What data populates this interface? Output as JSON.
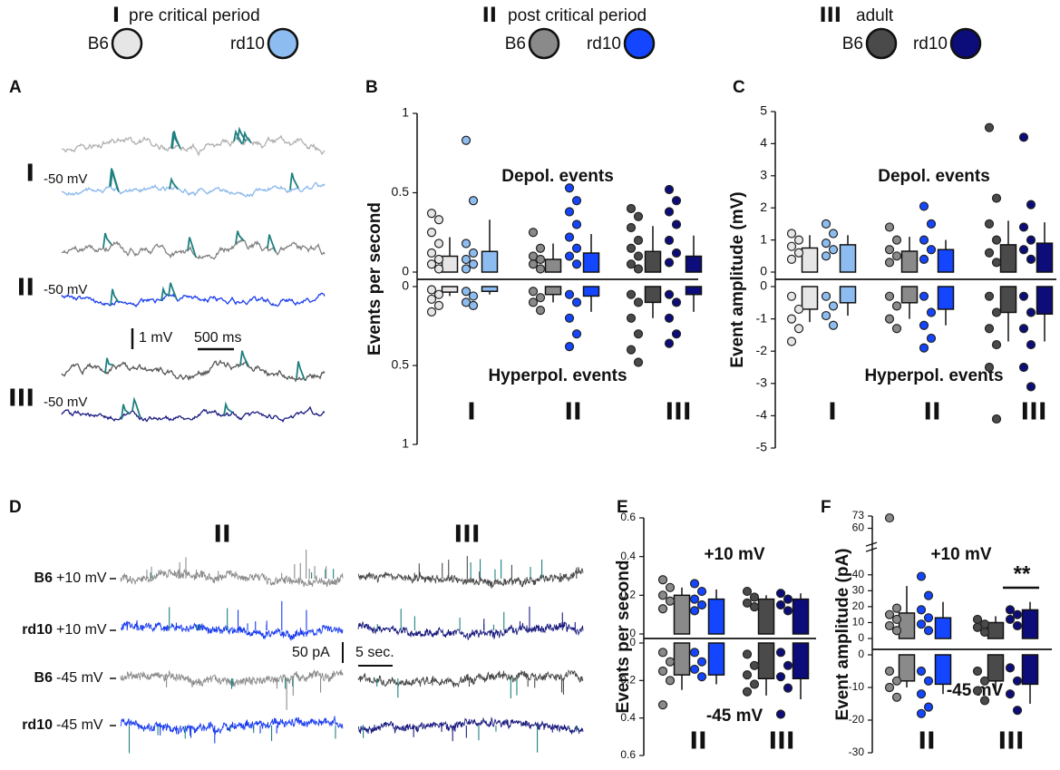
{
  "legend": [
    {
      "numeral": "I",
      "period": "pre critical period",
      "strains": [
        {
          "name": "B6",
          "color": "#e6e6e6"
        },
        {
          "name": "rd10",
          "color": "#8dbdf0"
        }
      ]
    },
    {
      "numeral": "II",
      "period": "post critical period",
      "strains": [
        {
          "name": "B6",
          "color": "#8a8a8a"
        },
        {
          "name": "rd10",
          "color": "#1446ff"
        }
      ]
    },
    {
      "numeral": "III",
      "period": "adult",
      "strains": [
        {
          "name": "B6",
          "color": "#4a4a4a"
        },
        {
          "name": "rd10",
          "color": "#0c0c7a"
        }
      ]
    }
  ],
  "spike_color": "#1f8080",
  "panel_a": {
    "label": "A",
    "rows": [
      {
        "numeral": "I",
        "voltage": "-50 mV",
        "colors": [
          "#b0b0b0",
          "#8ab7ec"
        ]
      },
      {
        "numeral": "II",
        "voltage": "-50 mV",
        "colors": [
          "#808080",
          "#1a3cf0"
        ]
      },
      {
        "numeral": "III",
        "voltage": "-50 mV",
        "colors": [
          "#555555",
          "#1a1a80"
        ]
      }
    ],
    "scale_v": "1 mV",
    "scale_t": "500 ms"
  },
  "panel_d": {
    "label": "D",
    "columns": [
      {
        "numeral": "II",
        "colors": [
          "#8c8c8c",
          "#1a3cf0",
          "#8c8c8c",
          "#1a3cf0"
        ]
      },
      {
        "numeral": "III",
        "colors": [
          "#4a4a4a",
          "#1c1c80",
          "#4a4a4a",
          "#1c1c80"
        ]
      }
    ],
    "rows": [
      {
        "strain": "B6",
        "voltage": "+10 mV"
      },
      {
        "strain": "rd10",
        "voltage": "+10 mV"
      },
      {
        "strain": "B6",
        "voltage": "-45 mV"
      },
      {
        "strain": "rd10",
        "voltage": "-45 mV"
      }
    ],
    "scale_i": "50 pA",
    "scale_t": "5 sec."
  },
  "chart_data": [
    {
      "type": "mirrored_bar",
      "label": "B",
      "ylabel": "Events per second",
      "upper_label": "Depol. events",
      "lower_label": "Hyperpol. events",
      "categories": [
        "I",
        "II",
        "III"
      ],
      "ylim": [
        0,
        1
      ],
      "yticks": [
        0,
        0.5,
        1
      ],
      "lower_ylim": [
        0,
        1
      ],
      "lower_yticks": [
        0,
        0.5,
        1
      ],
      "series": [
        {
          "colors": [
            "#e6e6e6",
            "#8a8a8a",
            "#4a4a4a"
          ],
          "values": [
            0.1,
            0.08,
            0.13
          ],
          "errors": [
            0.12,
            0.1,
            0.16
          ],
          "lower_values": [
            0.035,
            0.05,
            0.1
          ],
          "lower_errors": [
            0.025,
            0.05,
            0.1
          ],
          "points": [
            [
              0.37,
              0.33,
              0.25,
              0.18,
              0.12,
              0.08,
              0.05,
              0.02
            ],
            [
              0.25,
              0.15,
              0.1,
              0.08,
              0.05,
              0.02
            ],
            [
              0.4,
              0.35,
              0.28,
              0.2,
              0.15,
              0.1,
              0.05,
              0.02
            ]
          ],
          "lower_points": [
            [
              0.02,
              0.05,
              0.08,
              0.12,
              0.16
            ],
            [
              0.03,
              0.07,
              0.1,
              0.15
            ],
            [
              0.05,
              0.1,
              0.2,
              0.3,
              0.4,
              0.48
            ]
          ]
        },
        {
          "colors": [
            "#8dbdf0",
            "#1446ff",
            "#0c0c7a"
          ],
          "values": [
            0.13,
            0.12,
            0.1
          ],
          "errors": [
            0.2,
            0.12,
            0.13
          ],
          "lower_values": [
            0.03,
            0.06,
            0.05
          ],
          "lower_errors": [
            0.02,
            0.1,
            0.11
          ],
          "points": [
            [
              0.83,
              0.45,
              0.18,
              0.12,
              0.08,
              0.05,
              0.02
            ],
            [
              0.53,
              0.45,
              0.38,
              0.3,
              0.22,
              0.15,
              0.1,
              0.05
            ],
            [
              0.52,
              0.45,
              0.38,
              0.3,
              0.2,
              0.12,
              0.06
            ]
          ],
          "lower_points": [
            [
              0.03,
              0.06,
              0.1,
              0.12
            ],
            [
              0.05,
              0.1,
              0.2,
              0.3,
              0.38
            ],
            [
              0.05,
              0.1,
              0.2,
              0.3,
              0.36
            ]
          ]
        }
      ]
    },
    {
      "type": "mirrored_bar",
      "label": "C",
      "ylabel": "Event amplitude (mV)",
      "upper_label": "Depol. events",
      "lower_label": "Hyperpol. events",
      "categories": [
        "I",
        "II",
        "III"
      ],
      "ylim": [
        0,
        5
      ],
      "yticks": [
        0,
        1,
        2,
        3,
        4,
        5
      ],
      "lower_ylim": [
        0,
        -5
      ],
      "lower_yticks": [
        0,
        -1,
        -2,
        -3,
        -4,
        -5
      ],
      "series": [
        {
          "colors": [
            "#e6e6e6",
            "#8a8a8a",
            "#4a4a4a"
          ],
          "values": [
            0.75,
            0.65,
            0.85
          ],
          "errors": [
            0.4,
            0.45,
            0.75
          ],
          "lower_values": [
            -0.7,
            -0.5,
            -0.8
          ],
          "lower_errors": [
            -0.4,
            -0.5,
            -0.9
          ],
          "points": [
            [
              1.2,
              1.0,
              0.8,
              0.6,
              0.4
            ],
            [
              1.4,
              1.0,
              0.7,
              0.5,
              0.3
            ],
            [
              4.5,
              2.3,
              1.5,
              1.0,
              0.6,
              0.3
            ]
          ],
          "lower_points": [
            [
              -0.3,
              -0.7,
              -1.0,
              -1.3,
              -1.7
            ],
            [
              -0.3,
              -0.6,
              -1.0,
              -1.3
            ],
            [
              -0.3,
              -0.8,
              -1.3,
              -1.8,
              -2.5,
              -4.1
            ]
          ]
        },
        {
          "colors": [
            "#8dbdf0",
            "#1446ff",
            "#0c0c7a"
          ],
          "values": [
            0.85,
            0.7,
            0.9
          ],
          "errors": [
            0.3,
            0.3,
            0.65
          ],
          "lower_values": [
            -0.5,
            -0.7,
            -0.85
          ],
          "lower_errors": [
            -0.4,
            -0.5,
            -0.85
          ],
          "points": [
            [
              1.5,
              1.2,
              0.9,
              0.7,
              0.5
            ],
            [
              2.05,
              1.5,
              1.0,
              0.7,
              0.4
            ],
            [
              4.2,
              2.1,
              1.4,
              1.0,
              0.7,
              0.4
            ]
          ],
          "lower_points": [
            [
              -0.3,
              -0.6,
              -0.9,
              -1.2
            ],
            [
              -0.3,
              -0.8,
              -1.2,
              -1.6,
              -1.9
            ],
            [
              -0.3,
              -0.8,
              -1.3,
              -1.8,
              -2.5,
              -3.1
            ]
          ]
        }
      ]
    },
    {
      "type": "mirrored_bar",
      "label": "E",
      "ylabel": "Events per second",
      "upper_label": "+10 mV",
      "lower_label": "-45 mV",
      "categories": [
        "II",
        "III"
      ],
      "ylim": [
        0,
        0.6
      ],
      "yticks": [
        0,
        0.2,
        0.4,
        0.6
      ],
      "lower_ylim": [
        0,
        0.6
      ],
      "lower_yticks": [
        0,
        0.2,
        0.4,
        0.6
      ],
      "series": [
        {
          "colors": [
            "#8a8a8a",
            "#4a4a4a"
          ],
          "values": [
            0.2,
            0.18
          ],
          "errors": [
            0.04,
            0.02
          ],
          "lower_values": [
            0.17,
            0.19
          ],
          "lower_errors": [
            0.08,
            0.09
          ],
          "points": [
            [
              0.28,
              0.24,
              0.2,
              0.17,
              0.13
            ],
            [
              0.22,
              0.19,
              0.16,
              0.14
            ]
          ],
          "lower_points": [
            [
              0.05,
              0.1,
              0.15,
              0.2,
              0.33
            ],
            [
              0.06,
              0.12,
              0.17,
              0.22,
              0.26
            ]
          ]
        },
        {
          "colors": [
            "#1446ff",
            "#0c0c7a"
          ],
          "values": [
            0.18,
            0.18
          ],
          "errors": [
            0.05,
            0.03
          ],
          "lower_values": [
            0.17,
            0.19
          ],
          "lower_errors": [
            0.05,
            0.11
          ],
          "points": [
            [
              0.26,
              0.22,
              0.18,
              0.15,
              0.12
            ],
            [
              0.21,
              0.18,
              0.15,
              0.12
            ]
          ],
          "lower_points": [
            [
              0.05,
              0.1,
              0.14,
              0.18
            ],
            [
              0.05,
              0.12,
              0.18,
              0.24,
              0.38
            ]
          ]
        }
      ]
    },
    {
      "type": "mirrored_bar",
      "label": "F",
      "ylabel": "Event amplitude (pA)",
      "upper_label": "+10 mV",
      "lower_label": "-45 mV",
      "significance": "**",
      "categories": [
        "II",
        "III"
      ],
      "ylim": [
        0,
        73
      ],
      "yticks": [
        0,
        10,
        20,
        30,
        40,
        60,
        73
      ],
      "axis_break": true,
      "lower_ylim": [
        0,
        -30
      ],
      "lower_yticks": [
        0,
        -10,
        -20,
        -30
      ],
      "series": [
        {
          "colors": [
            "#8a8a8a",
            "#4a4a4a"
          ],
          "values": [
            16,
            10
          ],
          "errors": [
            17,
            4
          ],
          "lower_values": [
            -8,
            -8
          ],
          "lower_errors": [
            -2,
            -4
          ],
          "points": [
            [
              71,
              19,
              15,
              12,
              8,
              5
            ],
            [
              12,
              9,
              7,
              4
            ]
          ],
          "lower_points": [
            [
              -5,
              -8,
              -10,
              -13
            ],
            [
              -5,
              -8,
              -11,
              -14
            ]
          ]
        },
        {
          "colors": [
            "#1446ff",
            "#0c0c7a"
          ],
          "values": [
            13,
            18
          ],
          "errors": [
            10,
            5
          ],
          "lower_values": [
            -9,
            -9
          ],
          "lower_errors": [
            -3,
            -6
          ],
          "points": [
            [
              39,
              27,
              18,
              13,
              9,
              5
            ],
            [
              18,
              15,
              12,
              8
            ]
          ],
          "lower_points": [
            [
              -5,
              -8,
              -12,
              -16,
              -18
            ],
            [
              -4,
              -8,
              -12,
              -17
            ]
          ]
        }
      ]
    }
  ]
}
